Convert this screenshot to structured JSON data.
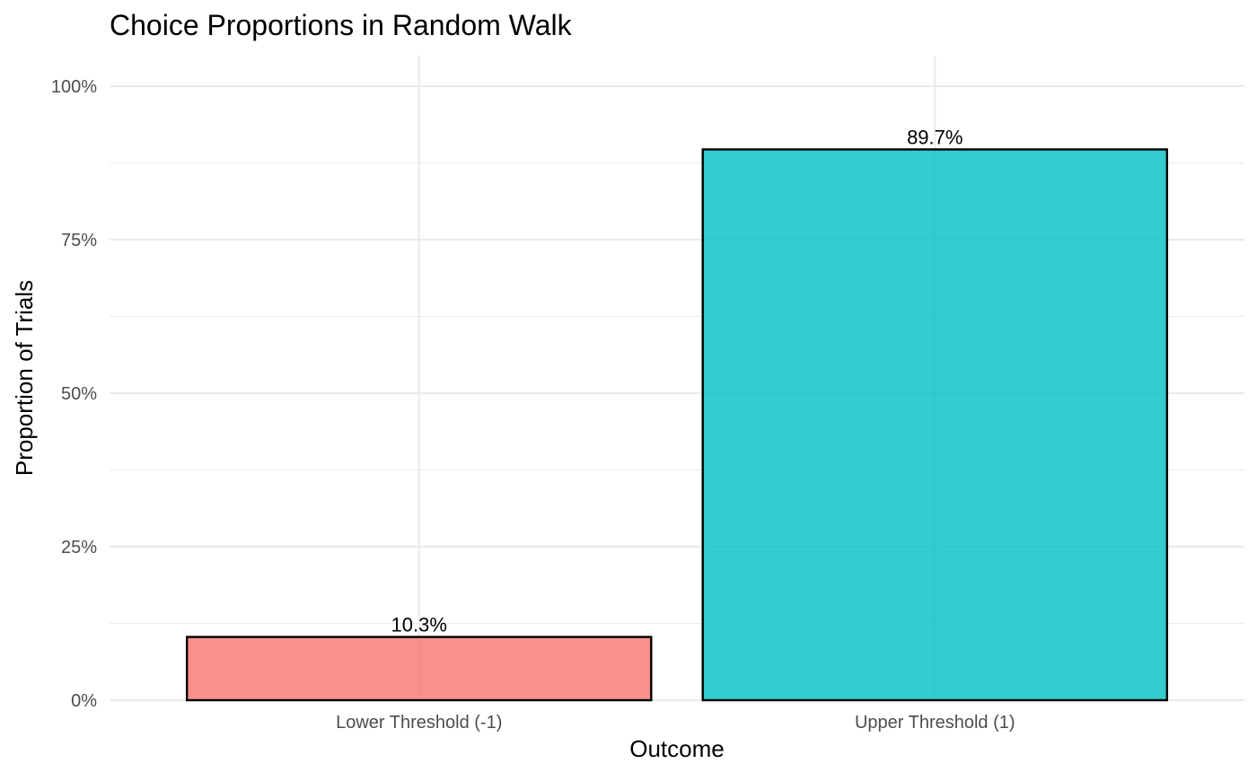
{
  "chart_data": {
    "type": "bar",
    "title": "Choice Proportions in Random Walk",
    "xlabel": "Outcome",
    "ylabel": "Proportion of Trials",
    "categories": [
      "Lower Threshold (-1)",
      "Upper Threshold (1)"
    ],
    "values": [
      0.103,
      0.897
    ],
    "value_labels": [
      "10.3%",
      "89.7%"
    ],
    "bar_colors": [
      "#F8766D",
      "#00BFC4"
    ],
    "bar_fill_opacity": 0.8,
    "bar_outline": "#000000",
    "ylim": [
      0,
      1
    ],
    "y_ticks": [
      0,
      0.25,
      0.5,
      0.75,
      1
    ],
    "y_tick_labels": [
      "0%",
      "25%",
      "50%",
      "75%",
      "100%"
    ],
    "grid": true,
    "legend": "none"
  }
}
